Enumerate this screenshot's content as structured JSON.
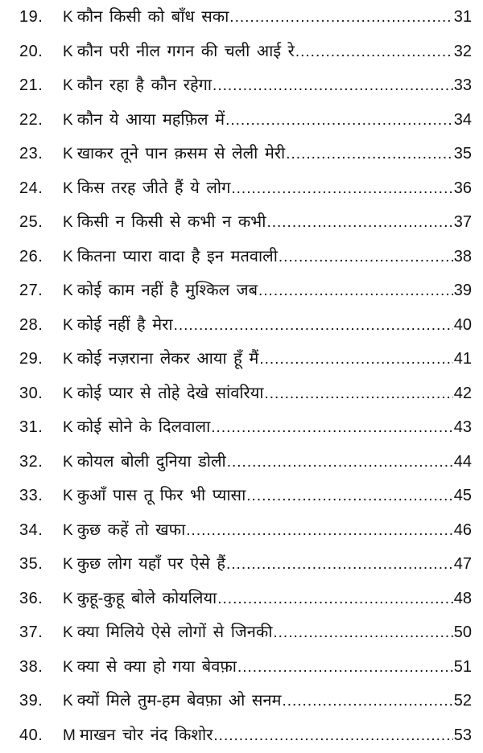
{
  "document": {
    "kind": "table-of-contents",
    "entries": [
      {
        "num": "19.",
        "letter": "K",
        "title": "कौन किसी को बाँध सका",
        "page": "31"
      },
      {
        "num": "20.",
        "letter": "K",
        "title": "कौन परी नील गगन की चली आई रे",
        "page": "32"
      },
      {
        "num": "21.",
        "letter": "K",
        "title": "कौन रहा है कौन रहेगा",
        "page": "33"
      },
      {
        "num": "22.",
        "letter": "K",
        "title": "कौन ये आया महफ़िल में",
        "page": "34"
      },
      {
        "num": "23.",
        "letter": "K",
        "title": "खाकर तूने पान क़सम से लेली मेरी",
        "page": "35"
      },
      {
        "num": "24.",
        "letter": "K",
        "title": "किस तरह जीते हैं ये लोग",
        "page": "36"
      },
      {
        "num": "25.",
        "letter": "K",
        "title": "किसी न किसी से कभी न कभी",
        "page": "37"
      },
      {
        "num": "26.",
        "letter": "K",
        "title": "कितना प्यारा वादा है इन मतवाली",
        "page": "38"
      },
      {
        "num": "27.",
        "letter": "K",
        "title": "कोई काम नहीं है मुश्किल जब",
        "page": "39"
      },
      {
        "num": "28.",
        "letter": "K",
        "title": "कोई नहीं है मेरा",
        "page": "40"
      },
      {
        "num": "29.",
        "letter": "K",
        "title": "कोई नज़राना लेकर आया हूँ मैं",
        "page": "41"
      },
      {
        "num": "30.",
        "letter": "K",
        "title": "कोई प्यार से तोहे देखे सांवरिया",
        "page": "42"
      },
      {
        "num": "31.",
        "letter": "K",
        "title": "कोई सोने के दिलवाला",
        "page": "43"
      },
      {
        "num": "32.",
        "letter": "K",
        "title": "कोयल बोली दुनिया डोली",
        "page": "44"
      },
      {
        "num": "33.",
        "letter": "K",
        "title": "कुआँ पास तू फिर भी प्यासा",
        "page": "45"
      },
      {
        "num": "34.",
        "letter": "K",
        "title": "कुछ कहें तो खफा",
        "page": "46"
      },
      {
        "num": "35.",
        "letter": "K",
        "title": "कुछ लोग यहाँ पर ऐसे हैं",
        "page": "47"
      },
      {
        "num": "36.",
        "letter": "K",
        "title": "कुहू-कुहू बोले कोयलिया",
        "page": "48"
      },
      {
        "num": "37.",
        "letter": "K",
        "title": "क्या मिलिये ऐसे लोगों से जिनकी",
        "page": "50"
      },
      {
        "num": "38.",
        "letter": "K",
        "title": "क्या से क्या हो गया बेवफ़ा",
        "page": "51"
      },
      {
        "num": "39.",
        "letter": "K",
        "title": "क्यों मिले तुम-हम बेवफ़ा ओ सनम",
        "page": "52"
      },
      {
        "num": "40.",
        "letter": "M",
        "title": "माखन चोर नंद किशोर",
        "page": "53"
      }
    ]
  }
}
